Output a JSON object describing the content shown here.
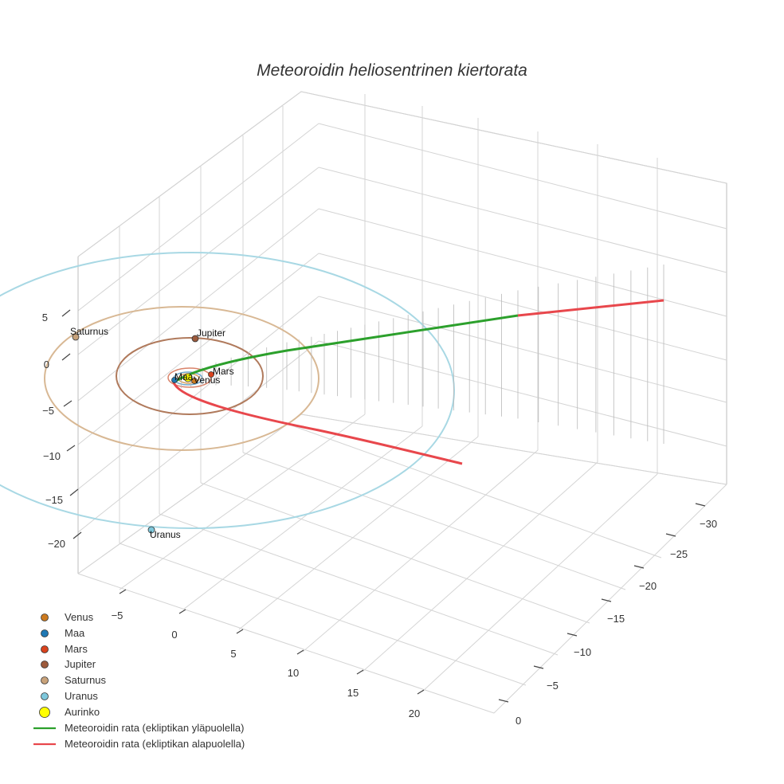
{
  "chart_data": {
    "type": "3d-line",
    "title": "Meteoroidin heliosentrinen kiertorata",
    "x_ticks": [
      "−5",
      "0",
      "5",
      "10",
      "15",
      "20"
    ],
    "y_ticks": [
      "−30",
      "−25",
      "−20",
      "−15",
      "−10",
      "−5",
      "0"
    ],
    "z_ticks": [
      "5",
      "0",
      "−5",
      "−10",
      "−15",
      "−20"
    ],
    "grid": true,
    "legend_position": "bottom-left",
    "planets": [
      {
        "name": "Venus",
        "label": "Venus",
        "color": "#cc7a1f",
        "orbit_radius": 0.72
      },
      {
        "name": "Maa",
        "label": "Maa",
        "color": "#1f78b4",
        "orbit_radius": 1.0
      },
      {
        "name": "Mars",
        "label": "Mars",
        "color": "#d9431e",
        "orbit_radius": 1.52
      },
      {
        "name": "Jupiter",
        "label": "Jupiter",
        "color": "#9c5a3c",
        "orbit_radius": 5.2
      },
      {
        "name": "Saturnus",
        "label": "Saturnus",
        "color": "#c8a27a",
        "orbit_radius": 9.5
      },
      {
        "name": "Uranus",
        "label": "Uranus",
        "color": "#7ec8dc",
        "orbit_radius": 19.2
      }
    ],
    "sun": {
      "name": "Aurinko",
      "color": "#ffff00"
    },
    "series": [
      {
        "name": "Meteoroidin rata (ekliptikan yläpuolella)",
        "color": "#2ca02c"
      },
      {
        "name": "Meteoroidin rata (ekliptikan alapuolella)",
        "color": "#e8474c"
      }
    ]
  }
}
